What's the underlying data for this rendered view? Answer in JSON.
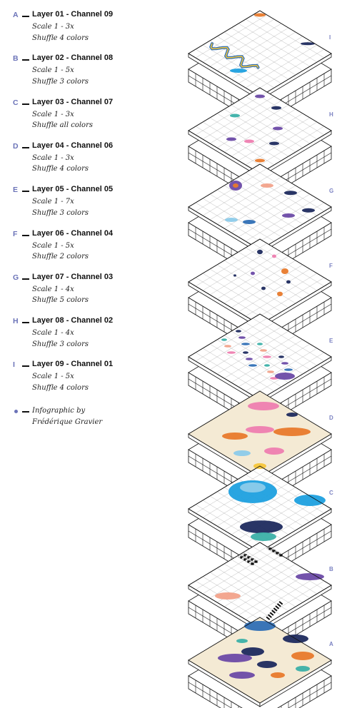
{
  "legend": [
    {
      "letter": "A",
      "title": "Layer 01 - Channel 09",
      "scale": "Scale 1 - 3x",
      "shuffle": "Shuffle 4 colors"
    },
    {
      "letter": "B",
      "title": "Layer 02 - Channel 08",
      "scale": "Scale 1 - 5x",
      "shuffle": "Shuffle 3 colors"
    },
    {
      "letter": "C",
      "title": "Layer 03 - Channel 07",
      "scale": "Scale 1 - 3x",
      "shuffle": "Shuffle all colors"
    },
    {
      "letter": "D",
      "title": "Layer 04 - Channel 06",
      "scale": "Scale 1 - 3x",
      "shuffle": "Shuffle 4 colors"
    },
    {
      "letter": "E",
      "title": "Layer 05 - Channel 05",
      "scale": "Scale 1 - 7x",
      "shuffle": "Shuffle 3 colors"
    },
    {
      "letter": "F",
      "title": "Layer 06 - Channel 04",
      "scale": "Scale 1 - 5x",
      "shuffle": "Shuffle 2 colors"
    },
    {
      "letter": "G",
      "title": "Layer 07 - Channel 03",
      "scale": "Scale 1 - 4x",
      "shuffle": "Shuffle 5 colors"
    },
    {
      "letter": "H",
      "title": "Layer 08 - Channel 02",
      "scale": "Scale 1 - 4x",
      "shuffle": "Shuffle 3 colors"
    },
    {
      "letter": "I",
      "title": "Layer 09 - Channel 01",
      "scale": "Scale 1 - 5x",
      "shuffle": "Shuffle 4 colors"
    }
  ],
  "credit": {
    "line1": "Infographic by",
    "line2": "Frédérique Gravier"
  },
  "stack_labels": [
    "I",
    "H",
    "G",
    "F",
    "E",
    "D",
    "C",
    "B",
    "A"
  ],
  "colors": {
    "accent": "#6b73b8",
    "ink": "#111111",
    "grid": "#bdbdbd",
    "navy": "#1e2a5e",
    "blue": "#2f6fb5",
    "sky": "#1ea0df",
    "light_blue": "#8ccbea",
    "orange": "#e87a2c",
    "pink": "#ee7eb0",
    "cream": "#f4ead4",
    "yellow": "#f6c63a",
    "teal": "#3bb0a8",
    "purple": "#6c4aa6",
    "salmon": "#f2a28a"
  }
}
